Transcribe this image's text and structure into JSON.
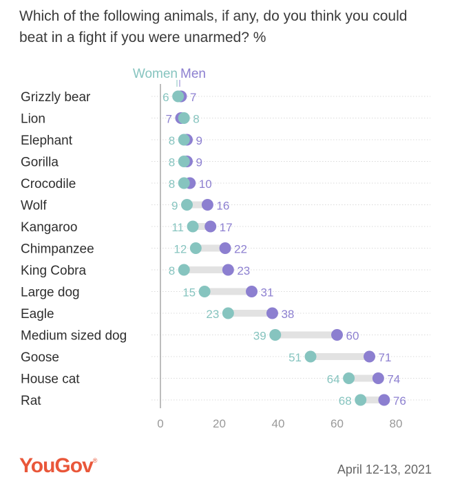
{
  "title": "Which of the following animals, if any, do you think you could beat in a fight if you were unarmed? %",
  "logo": "YouGov",
  "logo_mark": "®",
  "date": "April 12-13, 2021",
  "colors": {
    "women": "#86c4bf",
    "men": "#8c7fd0",
    "connector": "#e2e2e2",
    "axis": "#999999",
    "brand": "#e9573a"
  },
  "chart_data": {
    "type": "dumbbell",
    "categories": [
      "Grizzly bear",
      "Lion",
      "Elephant",
      "Gorilla",
      "Crocodile",
      "Wolf",
      "Kangaroo",
      "Chimpanzee",
      "King Cobra",
      "Large dog",
      "Eagle",
      "Medium sized dog",
      "Goose",
      "House cat",
      "Rat"
    ],
    "series": [
      {
        "name": "Women",
        "values": [
          6,
          8,
          8,
          8,
          8,
          9,
          11,
          12,
          8,
          15,
          23,
          39,
          51,
          64,
          68
        ]
      },
      {
        "name": "Men",
        "values": [
          7,
          7,
          9,
          9,
          10,
          16,
          17,
          22,
          23,
          31,
          38,
          60,
          71,
          74,
          76
        ]
      }
    ],
    "value_labels": {
      "Women": [
        "6",
        "8",
        "8",
        "8",
        "8",
        "9",
        "11",
        "12",
        "8",
        "15",
        "23",
        "39",
        "51",
        "64",
        "68"
      ],
      "Men": [
        "7",
        "7",
        "9",
        "9",
        "10",
        "16",
        "17",
        "22",
        "23",
        "31",
        "38",
        "60",
        "71",
        "74",
        "76"
      ]
    },
    "xlim": [
      0,
      80
    ],
    "xticks": [
      0,
      20,
      40,
      60,
      80
    ],
    "grid": true,
    "legend": "top"
  }
}
